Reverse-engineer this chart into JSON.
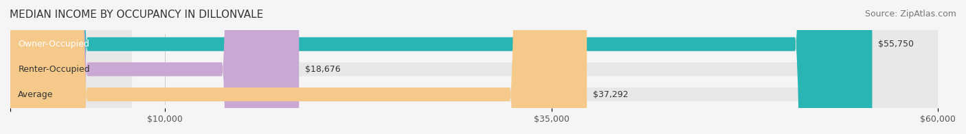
{
  "title": "MEDIAN INCOME BY OCCUPANCY IN DILLONVALE",
  "source": "Source: ZipAtlas.com",
  "categories": [
    "Owner-Occupied",
    "Renter-Occupied",
    "Average"
  ],
  "values": [
    55750,
    18676,
    37292
  ],
  "labels": [
    "$55,750",
    "$18,676",
    "$37,292"
  ],
  "bar_colors": [
    "#2ab5b5",
    "#c9a8d4",
    "#f5c98a"
  ],
  "bar_edge_colors": [
    "#2ab5b5",
    "#c9a8d4",
    "#f5c98a"
  ],
  "bg_color": "#f5f5f5",
  "bar_bg_color": "#e8e8e8",
  "xlim": [
    0,
    60000
  ],
  "xticks": [
    0,
    10000,
    35000,
    60000
  ],
  "xtick_labels": [
    "",
    "$10,000",
    "$35,000",
    "$60,000"
  ],
  "title_fontsize": 11,
  "source_fontsize": 9,
  "label_fontsize": 9,
  "cat_fontsize": 9,
  "bar_height": 0.55,
  "figsize": [
    14.06,
    1.96
  ],
  "dpi": 100
}
